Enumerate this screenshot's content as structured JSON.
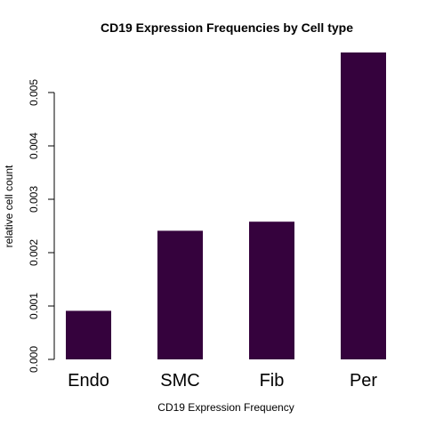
{
  "chart_data": {
    "type": "bar",
    "title": "CD19 Expression Frequencies by Cell type",
    "xlabel": "CD19 Expression Frequency",
    "ylabel": "relative cell count",
    "categories": [
      "Endo",
      "SMC",
      "Fib",
      "Per"
    ],
    "values": [
      0.00091,
      0.00241,
      0.00258,
      0.00575
    ],
    "ylim": [
      0,
      0.00575
    ],
    "yticks": [
      0,
      0.001,
      0.002,
      0.003,
      0.004,
      0.005
    ],
    "ytick_labels": [
      "0.000",
      "0.001",
      "0.002",
      "0.003",
      "0.004",
      "0.005"
    ],
    "bar_color": "#35023D",
    "grid": false,
    "legend": "none"
  }
}
